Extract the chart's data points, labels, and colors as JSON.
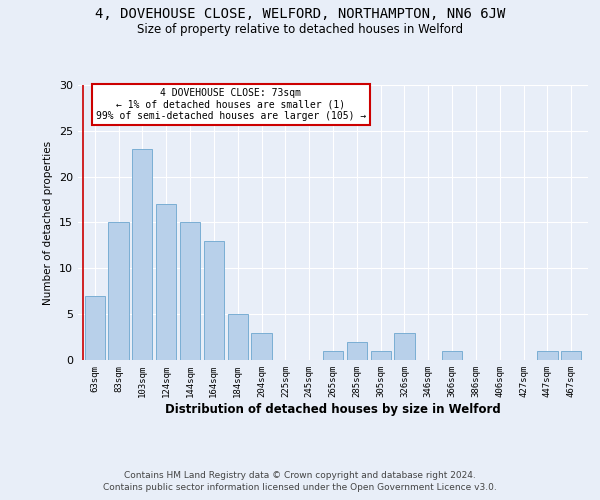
{
  "title_line1": "4, DOVEHOUSE CLOSE, WELFORD, NORTHAMPTON, NN6 6JW",
  "title_line2": "Size of property relative to detached houses in Welford",
  "xlabel": "Distribution of detached houses by size in Welford",
  "ylabel": "Number of detached properties",
  "categories": [
    "63sqm",
    "83sqm",
    "103sqm",
    "124sqm",
    "144sqm",
    "164sqm",
    "184sqm",
    "204sqm",
    "225sqm",
    "245sqm",
    "265sqm",
    "285sqm",
    "305sqm",
    "326sqm",
    "346sqm",
    "366sqm",
    "386sqm",
    "406sqm",
    "427sqm",
    "447sqm",
    "467sqm"
  ],
  "values": [
    7,
    15,
    23,
    17,
    15,
    13,
    5,
    3,
    0,
    0,
    1,
    2,
    1,
    3,
    0,
    1,
    0,
    0,
    0,
    1,
    1
  ],
  "bar_color": "#b8d0ea",
  "bar_edge_color": "#7aaed4",
  "background_color": "#e8eef8",
  "grid_color": "#ffffff",
  "annotation_box_color": "#ffffff",
  "annotation_border_color": "#cc0000",
  "annotation_line1": "4 DOVEHOUSE CLOSE: 73sqm",
  "annotation_line2": "← 1% of detached houses are smaller (1)",
  "annotation_line3": "99% of semi-detached houses are larger (105) →",
  "ylim": [
    0,
    30
  ],
  "yticks": [
    0,
    5,
    10,
    15,
    20,
    25,
    30
  ],
  "footer_line1": "Contains HM Land Registry data © Crown copyright and database right 2024.",
  "footer_line2": "Contains public sector information licensed under the Open Government Licence v3.0."
}
